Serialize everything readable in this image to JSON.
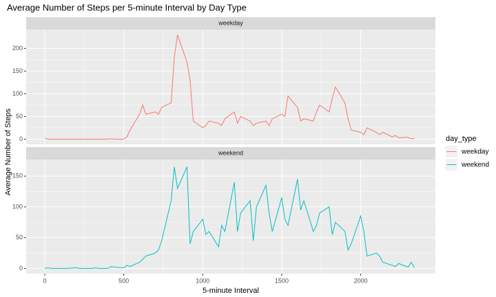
{
  "chart_data": {
    "type": "line",
    "title": "Average Number of Steps per 5-minute Interval by Day Type",
    "x_label": "5-minute Interval",
    "y_label": "Average Number of Steps",
    "legend_title": "day_type",
    "legend_position": "right",
    "x": [
      0,
      20,
      40,
      100,
      120,
      140,
      200,
      220,
      240,
      300,
      320,
      340,
      400,
      420,
      440,
      500,
      520,
      540,
      600,
      620,
      640,
      700,
      720,
      740,
      800,
      820,
      840,
      900,
      920,
      940,
      1000,
      1020,
      1040,
      1100,
      1120,
      1140,
      1200,
      1220,
      1240,
      1300,
      1320,
      1340,
      1400,
      1420,
      1440,
      1500,
      1520,
      1540,
      1600,
      1620,
      1640,
      1700,
      1720,
      1740,
      1800,
      1820,
      1840,
      1900,
      1920,
      1940,
      2000,
      2020,
      2040,
      2100,
      2120,
      2140,
      2200,
      2220,
      2240,
      2300,
      2320,
      2340
    ],
    "xlim": [
      -117.75,
      2472.75
    ],
    "xticks": [
      0,
      500,
      1000,
      1500,
      2000
    ],
    "grid": true,
    "series": [
      {
        "name": "weekday",
        "color": "#f8766d",
        "ylim": [
          -11.5,
          241.5
        ],
        "yticks": [
          0,
          50,
          100,
          150,
          200
        ],
        "values": [
          2,
          0,
          0,
          0,
          0,
          0,
          0,
          0,
          0,
          0,
          0,
          0,
          0,
          1,
          0,
          0,
          5,
          20,
          55,
          75,
          55,
          60,
          55,
          70,
          80,
          180,
          230,
          170,
          130,
          40,
          25,
          30,
          40,
          35,
          30,
          45,
          60,
          35,
          50,
          40,
          30,
          35,
          40,
          30,
          45,
          55,
          50,
          95,
          70,
          40,
          45,
          40,
          60,
          75,
          60,
          90,
          115,
          80,
          45,
          20,
          15,
          10,
          25,
          15,
          10,
          15,
          5,
          8,
          3,
          4,
          1,
          2
        ]
      },
      {
        "name": "weekend",
        "color": "#00bfc4",
        "ylim": [
          -8.5,
          177
        ],
        "yticks": [
          0,
          50,
          100,
          150
        ],
        "values": [
          0,
          1,
          0,
          0,
          0,
          0,
          1,
          0,
          0,
          0,
          1,
          0,
          0,
          3,
          2,
          1,
          5,
          3,
          10,
          15,
          20,
          25,
          30,
          45,
          110,
          165,
          130,
          165,
          40,
          60,
          80,
          55,
          60,
          35,
          70,
          60,
          140,
          60,
          90,
          110,
          45,
          100,
          135,
          90,
          60,
          115,
          80,
          70,
          145,
          95,
          110,
          60,
          70,
          90,
          100,
          55,
          75,
          60,
          30,
          40,
          85,
          60,
          20,
          25,
          20,
          10,
          5,
          3,
          8,
          2,
          10,
          1
        ]
      }
    ]
  }
}
